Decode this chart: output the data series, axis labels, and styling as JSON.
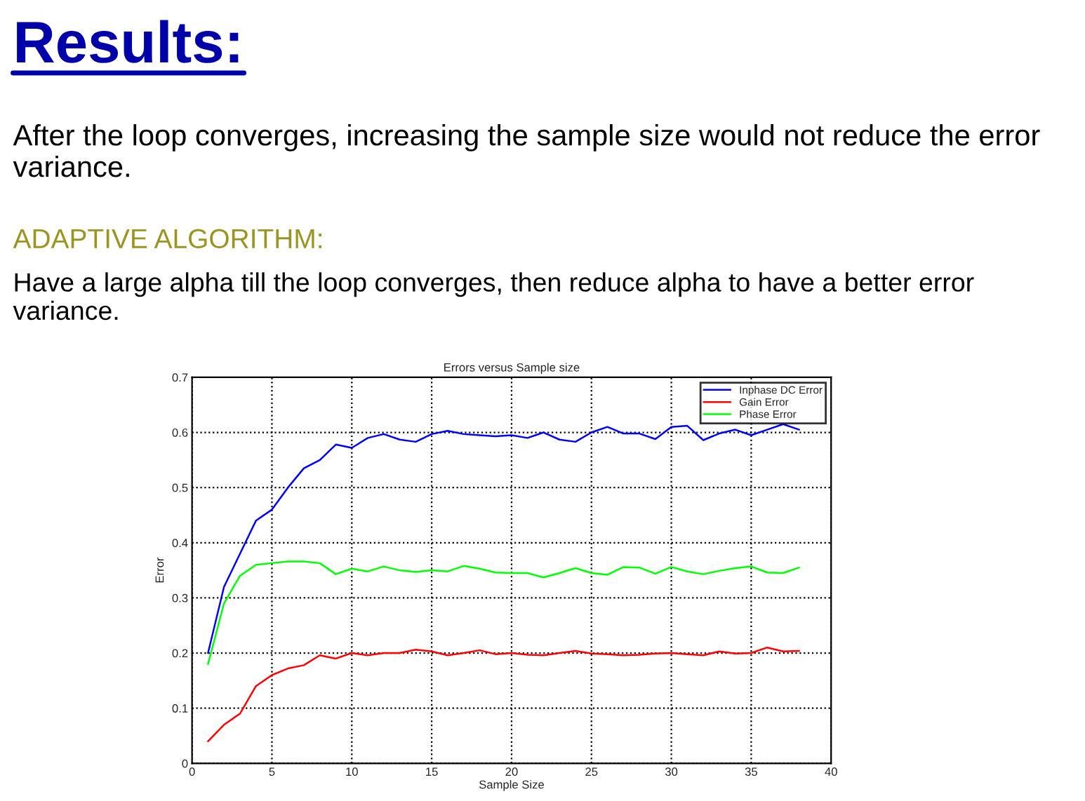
{
  "chart_data": {
    "type": "line",
    "title": "Errors versus Sample size",
    "xlabel": "Sample Size",
    "ylabel": "Error",
    "annotations": [
      "Results:",
      "After the loop converges, increasing the sample size would not reduce the error variance.",
      "ADAPTIVE ALGORITHM:",
      "Have a large alpha till the loop converges, then reduce alpha to have a better error variance."
    ],
    "x": [
      1,
      2,
      3,
      4,
      5,
      6,
      7,
      8,
      9,
      10,
      11,
      12,
      13,
      14,
      15,
      16,
      17,
      18,
      19,
      20,
      21,
      22,
      23,
      24,
      25,
      26,
      27,
      28,
      29,
      30,
      31,
      32,
      33,
      34,
      35,
      36,
      37,
      38
    ],
    "series": [
      {
        "name": "Inphase DC Error",
        "color": "#0000ff",
        "values": [
          0.2,
          0.32,
          0.38,
          0.44,
          0.46,
          0.5,
          0.535,
          0.55,
          0.578,
          0.572,
          0.59,
          0.597,
          0.587,
          0.583,
          0.597,
          0.603,
          0.597,
          0.595,
          0.593,
          0.595,
          0.59,
          0.6,
          0.587,
          0.583,
          0.6,
          0.61,
          0.598,
          0.598,
          0.588,
          0.61,
          0.612,
          0.586,
          0.598,
          0.605,
          0.595,
          0.605,
          0.615,
          0.605
        ]
      },
      {
        "name": "Gain Error",
        "color": "#ff0000",
        "values": [
          0.04,
          0.07,
          0.09,
          0.14,
          0.16,
          0.172,
          0.178,
          0.196,
          0.19,
          0.2,
          0.196,
          0.2,
          0.2,
          0.206,
          0.203,
          0.196,
          0.2,
          0.205,
          0.198,
          0.2,
          0.197,
          0.196,
          0.2,
          0.204,
          0.199,
          0.198,
          0.196,
          0.197,
          0.199,
          0.2,
          0.198,
          0.196,
          0.203,
          0.199,
          0.2,
          0.21,
          0.203,
          0.204
        ]
      },
      {
        "name": "Phase Error",
        "color": "#00ff00",
        "values": [
          0.18,
          0.29,
          0.34,
          0.36,
          0.363,
          0.366,
          0.366,
          0.363,
          0.343,
          0.353,
          0.348,
          0.357,
          0.35,
          0.347,
          0.35,
          0.348,
          0.358,
          0.353,
          0.346,
          0.345,
          0.345,
          0.337,
          0.345,
          0.354,
          0.345,
          0.342,
          0.356,
          0.355,
          0.344,
          0.356,
          0.348,
          0.343,
          0.349,
          0.354,
          0.357,
          0.346,
          0.345,
          0.355
        ]
      }
    ],
    "xlim": [
      0,
      40
    ],
    "xticks": [
      0,
      5,
      10,
      15,
      20,
      25,
      30,
      35,
      40
    ],
    "ylim": [
      0,
      0.7
    ],
    "yticks": [
      0,
      0.1,
      0.2,
      0.3,
      0.4,
      0.5,
      0.6,
      0.7
    ],
    "grid": true,
    "legend": "top right",
    "marker": "none",
    "line_style": "solid"
  }
}
